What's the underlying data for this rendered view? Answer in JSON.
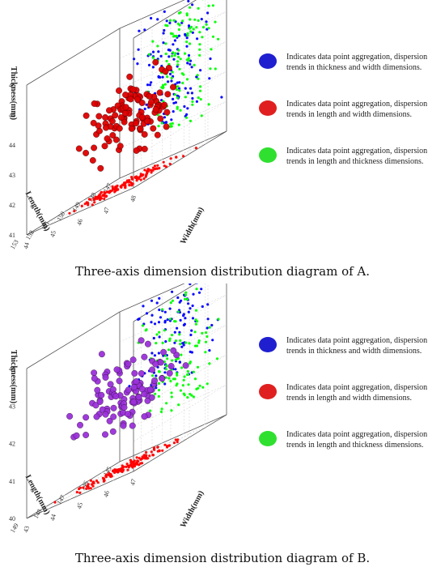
{
  "chart_data": [
    {
      "type": "scatter3d",
      "caption": "Three-axis dimension distribution diagram of A.",
      "xlabel": "Width(mm)",
      "ylabel": "Length(mm)",
      "zlabel": "Thickness(mm)",
      "xticks": [
        "44",
        "45",
        "46",
        "47",
        "48"
      ],
      "yticks": [
        "147",
        "148",
        "149",
        "150",
        "151",
        "152",
        "153"
      ],
      "zticks": [
        "41",
        "42",
        "43",
        "44",
        "45",
        "46"
      ],
      "xlim": [
        44,
        48
      ],
      "ylim": [
        147,
        153
      ],
      "zlim": [
        41,
        46
      ],
      "legend": [
        {
          "color": "#0000ff",
          "text": "Indicates data point aggregation, dispersion trends in thickness and width dimensions."
        },
        {
          "color": "#ff0000",
          "text": "Indicates data point aggregation, dispersion trends in length and width dimensions."
        },
        {
          "color": "#00ff00",
          "text": "Indicates data point aggregation, dispersion trends in length and thickness dimensions."
        }
      ],
      "series": [
        {
          "plane": "thickness-width",
          "color": "#0000ff",
          "count": 120,
          "x_range": [
            44,
            48
          ],
          "y": 147,
          "z_range": [
            42,
            46
          ]
        },
        {
          "plane": "length-width",
          "color": "#ff0000",
          "count": 140,
          "x_range": [
            44,
            48
          ],
          "y_range": [
            147,
            153
          ],
          "z": 41
        },
        {
          "plane": "length-thickness",
          "color": "#00ff00",
          "count": 130,
          "x": 48,
          "y_range": [
            147,
            153
          ],
          "z_range": [
            42,
            46
          ]
        },
        {
          "plane": "3d",
          "color": "#dd0000",
          "count": 110,
          "x_range": [
            44,
            48
          ],
          "y_range": [
            147,
            153
          ],
          "z_range": [
            41.5,
            45
          ]
        }
      ]
    },
    {
      "type": "scatter3d",
      "caption": "Three-axis dimension distribution diagram of B.",
      "xlabel": "Width(mm)",
      "ylabel": "Length(mm)",
      "zlabel": "Thickness(mm)",
      "xticks": [
        "43",
        "44",
        "45",
        "46",
        "47"
      ],
      "yticks": [
        "145",
        "146",
        "147",
        "148",
        "149"
      ],
      "zticks": [
        "40",
        "41",
        "42",
        "43",
        "44"
      ],
      "xlim": [
        43,
        47
      ],
      "ylim": [
        145,
        149
      ],
      "zlim": [
        40,
        44
      ],
      "legend": [
        {
          "color": "#0000ff",
          "text": "Indicates data point aggregation, dispersion trends in thickness and width dimensions."
        },
        {
          "color": "#ff0000",
          "text": "Indicates data point aggregation, dispersion trends in length and width dimensions."
        },
        {
          "color": "#00ff00",
          "text": "Indicates data point aggregation, dispersion trends in length and thickness dimensions."
        }
      ],
      "series": [
        {
          "plane": "thickness-width",
          "color": "#0000ff",
          "count": 110,
          "x_range": [
            43,
            47
          ],
          "y": 145,
          "z_range": [
            41.5,
            44
          ]
        },
        {
          "plane": "length-width",
          "color": "#ff0000",
          "count": 140,
          "x_range": [
            43,
            47
          ],
          "y_range": [
            145,
            149
          ],
          "z": 40
        },
        {
          "plane": "length-thickness",
          "color": "#00ff00",
          "count": 120,
          "x": 47,
          "y_range": [
            145,
            149
          ],
          "z_range": [
            41,
            44
          ]
        },
        {
          "plane": "3d",
          "color": "#9b30d9",
          "count": 110,
          "x_range": [
            43,
            47
          ],
          "y_range": [
            145,
            149
          ],
          "z_range": [
            40.5,
            43.5
          ]
        }
      ]
    }
  ]
}
